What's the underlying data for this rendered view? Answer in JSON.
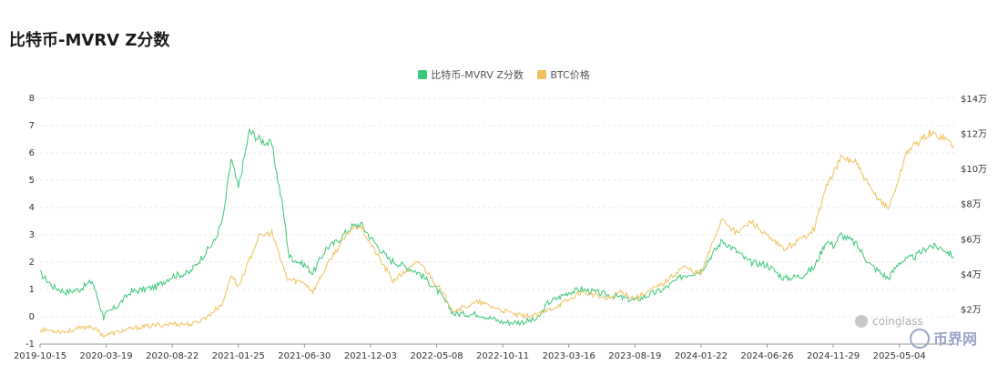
{
  "chart_data": {
    "type": "line",
    "title": "比特币-MVRV Z分数",
    "x_tick_labels": [
      "2019-10-15",
      "2020-03-19",
      "2020-08-22",
      "2021-01-25",
      "2021-06-30",
      "2021-12-03",
      "2022-05-08",
      "2022-10-11",
      "2023-03-16",
      "2023-08-19",
      "2024-01-22",
      "2024-06-26",
      "2024-11-29",
      "2025-05-04"
    ],
    "y_left": {
      "ylim": [
        -1,
        8
      ],
      "ticks": [
        "8",
        "7",
        "6",
        "5",
        "4",
        "3",
        "2",
        "1",
        "0",
        "-1"
      ]
    },
    "y_right": {
      "ylim": [
        0,
        140000
      ],
      "ticks": [
        "$14万",
        "$12万",
        "$10万",
        "$8万",
        "$6万",
        "$4万",
        "$2万"
      ]
    },
    "grid": true,
    "legend_position": "top-center",
    "series": [
      {
        "name": "比特币-MVRV Z分数",
        "color": "#3cc77a",
        "axis": "left",
        "points": [
          [
            "2019-10-15",
            1.6
          ],
          [
            "2019-11-15",
            1.1
          ],
          [
            "2019-12-15",
            0.9
          ],
          [
            "2020-01-15",
            1.0
          ],
          [
            "2020-02-15",
            1.3
          ],
          [
            "2020-03-13",
            0.0
          ],
          [
            "2020-03-19",
            0.1
          ],
          [
            "2020-04-15",
            0.4
          ],
          [
            "2020-05-15",
            0.9
          ],
          [
            "2020-06-15",
            1.0
          ],
          [
            "2020-07-15",
            1.1
          ],
          [
            "2020-08-22",
            1.5
          ],
          [
            "2020-10-01",
            1.6
          ],
          [
            "2020-11-01",
            2.2
          ],
          [
            "2020-12-01",
            2.8
          ],
          [
            "2020-12-20",
            3.6
          ],
          [
            "2021-01-08",
            5.8
          ],
          [
            "2021-01-25",
            4.7
          ],
          [
            "2021-02-20",
            6.8
          ],
          [
            "2021-03-15",
            6.5
          ],
          [
            "2021-04-14",
            6.3
          ],
          [
            "2021-05-10",
            4.0
          ],
          [
            "2021-05-25",
            2.2
          ],
          [
            "2021-06-30",
            1.9
          ],
          [
            "2021-07-20",
            1.6
          ],
          [
            "2021-08-20",
            2.5
          ],
          [
            "2021-09-10",
            2.7
          ],
          [
            "2021-10-20",
            3.3
          ],
          [
            "2021-11-10",
            3.4
          ],
          [
            "2021-12-03",
            2.9
          ],
          [
            "2022-01-15",
            2.1
          ],
          [
            "2022-02-15",
            1.9
          ],
          [
            "2022-03-28",
            1.6
          ],
          [
            "2022-05-08",
            1.0
          ],
          [
            "2022-06-18",
            0.1
          ],
          [
            "2022-08-15",
            0.1
          ],
          [
            "2022-10-11",
            -0.2
          ],
          [
            "2022-11-20",
            -0.2
          ],
          [
            "2023-01-01",
            -0.1
          ],
          [
            "2023-01-25",
            0.5
          ],
          [
            "2023-03-16",
            0.9
          ],
          [
            "2023-04-15",
            1.0
          ],
          [
            "2023-06-15",
            0.8
          ],
          [
            "2023-08-19",
            0.6
          ],
          [
            "2023-10-25",
            1.0
          ],
          [
            "2023-12-10",
            1.5
          ],
          [
            "2024-01-22",
            1.7
          ],
          [
            "2024-03-12",
            2.8
          ],
          [
            "2024-04-15",
            2.4
          ],
          [
            "2024-05-15",
            2.0
          ],
          [
            "2024-06-26",
            1.9
          ],
          [
            "2024-08-05",
            1.4
          ],
          [
            "2024-09-15",
            1.5
          ],
          [
            "2024-10-15",
            1.8
          ],
          [
            "2024-11-13",
            2.8
          ],
          [
            "2024-11-29",
            2.6
          ],
          [
            "2024-12-17",
            3.0
          ],
          [
            "2025-01-20",
            2.7
          ],
          [
            "2025-02-25",
            1.9
          ],
          [
            "2025-04-08",
            1.4
          ],
          [
            "2025-05-04",
            2.0
          ],
          [
            "2025-06-10",
            2.2
          ],
          [
            "2025-07-14",
            2.6
          ],
          [
            "2025-08-15",
            2.5
          ],
          [
            "2025-09-10",
            2.2
          ]
        ]
      },
      {
        "name": "BTC价格",
        "color": "#f0c15b",
        "axis": "right",
        "points": [
          [
            "2019-10-15",
            8200
          ],
          [
            "2019-12-15",
            7100
          ],
          [
            "2020-02-12",
            10300
          ],
          [
            "2020-03-13",
            4900
          ],
          [
            "2020-04-15",
            6800
          ],
          [
            "2020-06-01",
            9500
          ],
          [
            "2020-08-22",
            11600
          ],
          [
            "2020-10-10",
            11300
          ],
          [
            "2020-11-15",
            16000
          ],
          [
            "2020-12-20",
            23500
          ],
          [
            "2021-01-08",
            40000
          ],
          [
            "2021-01-25",
            32500
          ],
          [
            "2021-03-14",
            61000
          ],
          [
            "2021-04-14",
            63500
          ],
          [
            "2021-05-20",
            37000
          ],
          [
            "2021-06-30",
            35000
          ],
          [
            "2021-07-20",
            30000
          ],
          [
            "2021-09-06",
            51000
          ],
          [
            "2021-10-20",
            66000
          ],
          [
            "2021-11-10",
            68000
          ],
          [
            "2021-12-03",
            57000
          ],
          [
            "2022-01-25",
            36000
          ],
          [
            "2022-03-28",
            47000
          ],
          [
            "2022-05-08",
            34000
          ],
          [
            "2022-06-18",
            19000
          ],
          [
            "2022-08-15",
            24000
          ],
          [
            "2022-10-11",
            19000
          ],
          [
            "2022-11-20",
            16000
          ],
          [
            "2023-01-01",
            16500
          ],
          [
            "2023-03-16",
            25000
          ],
          [
            "2023-04-15",
            30000
          ],
          [
            "2023-06-15",
            25500
          ],
          [
            "2023-07-15",
            30000
          ],
          [
            "2023-08-19",
            26000
          ],
          [
            "2023-10-25",
            34500
          ],
          [
            "2023-12-10",
            44000
          ],
          [
            "2024-01-22",
            40000
          ],
          [
            "2024-03-12",
            72000
          ],
          [
            "2024-04-15",
            63000
          ],
          [
            "2024-05-20",
            70000
          ],
          [
            "2024-06-26",
            61000
          ],
          [
            "2024-08-05",
            54000
          ],
          [
            "2024-09-15",
            60000
          ],
          [
            "2024-10-15",
            66000
          ],
          [
            "2024-11-13",
            90000
          ],
          [
            "2024-11-29",
            97000
          ],
          [
            "2024-12-17",
            106000
          ],
          [
            "2025-01-20",
            104000
          ],
          [
            "2025-02-25",
            88000
          ],
          [
            "2025-04-08",
            77000
          ],
          [
            "2025-05-04",
            95000
          ],
          [
            "2025-05-22",
            110000
          ],
          [
            "2025-07-14",
            120000
          ],
          [
            "2025-08-15",
            118000
          ],
          [
            "2025-09-10",
            113000
          ]
        ]
      }
    ]
  },
  "watermark": {
    "brand": "coinglass",
    "site": "币界网"
  }
}
